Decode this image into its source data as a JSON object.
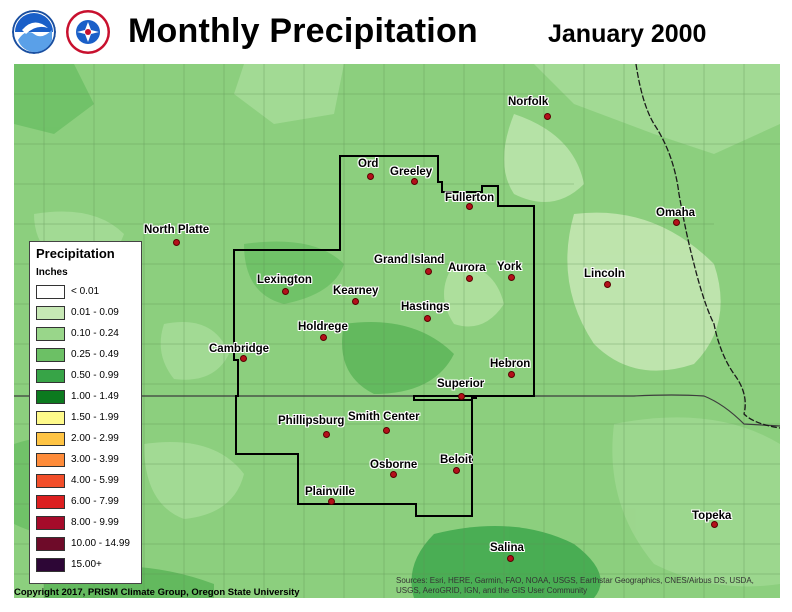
{
  "header": {
    "title": "Monthly Precipitation",
    "period": "January 2000"
  },
  "legend": {
    "title": "Precipitation",
    "units": "Inches",
    "items": [
      {
        "label": "< 0.01",
        "color": "#ffffff"
      },
      {
        "label": "0.01 - 0.09",
        "color": "#c7e8b5"
      },
      {
        "label": "0.10 - 0.24",
        "color": "#99d68a"
      },
      {
        "label": "0.25 - 0.49",
        "color": "#6cc065"
      },
      {
        "label": "0.50 - 0.99",
        "color": "#37a447"
      },
      {
        "label": "1.00 - 1.49",
        "color": "#0c7a1f"
      },
      {
        "label": "1.50 - 1.99",
        "color": "#fffa8a"
      },
      {
        "label": "2.00 - 2.99",
        "color": "#ffc444"
      },
      {
        "label": "3.00 - 3.99",
        "color": "#ff8c3a"
      },
      {
        "label": "4.00 - 5.99",
        "color": "#f24e2a"
      },
      {
        "label": "6.00 - 7.99",
        "color": "#dc1f20"
      },
      {
        "label": "8.00 - 9.99",
        "color": "#a50b2a"
      },
      {
        "label": "10.00 - 14.99",
        "color": "#6e0b29"
      },
      {
        "label": "15.00+",
        "color": "#2d0636"
      }
    ]
  },
  "cities": [
    {
      "name": "Norfolk"
    },
    {
      "name": "Ord"
    },
    {
      "name": "Greeley"
    },
    {
      "name": "Fullerton"
    },
    {
      "name": "North Platte"
    },
    {
      "name": "Omaha"
    },
    {
      "name": "Grand Island"
    },
    {
      "name": "Aurora"
    },
    {
      "name": "York"
    },
    {
      "name": "Lincoln"
    },
    {
      "name": "Lexington"
    },
    {
      "name": "Kearney"
    },
    {
      "name": "Hastings"
    },
    {
      "name": "Holdrege"
    },
    {
      "name": "Cambridge"
    },
    {
      "name": "Hebron"
    },
    {
      "name": "Superior"
    },
    {
      "name": "Phillipsburg"
    },
    {
      "name": "Smith Center"
    },
    {
      "name": "Osborne"
    },
    {
      "name": "Beloit"
    },
    {
      "name": "Plainville"
    },
    {
      "name": "Topeka"
    },
    {
      "name": "Salina"
    }
  ],
  "footer": {
    "credit": "Copyright 2017, PRISM Climate Group, Oregon State University",
    "sources": "Sources: Esri, HERE, Garmin, FAO, NOAA, USGS, Earthstar Geographics, CNES/Airbus DS, USDA, USGS, AeroGRID, IGN, and the GIS User Community"
  },
  "colors": {
    "map_base": "#8ccf7e",
    "border_lines": "#000000",
    "city_dot": "#b4101a"
  },
  "icons": {
    "noaa_logo": "noaa-logo-icon",
    "nws_logo": "nws-logo-icon"
  }
}
